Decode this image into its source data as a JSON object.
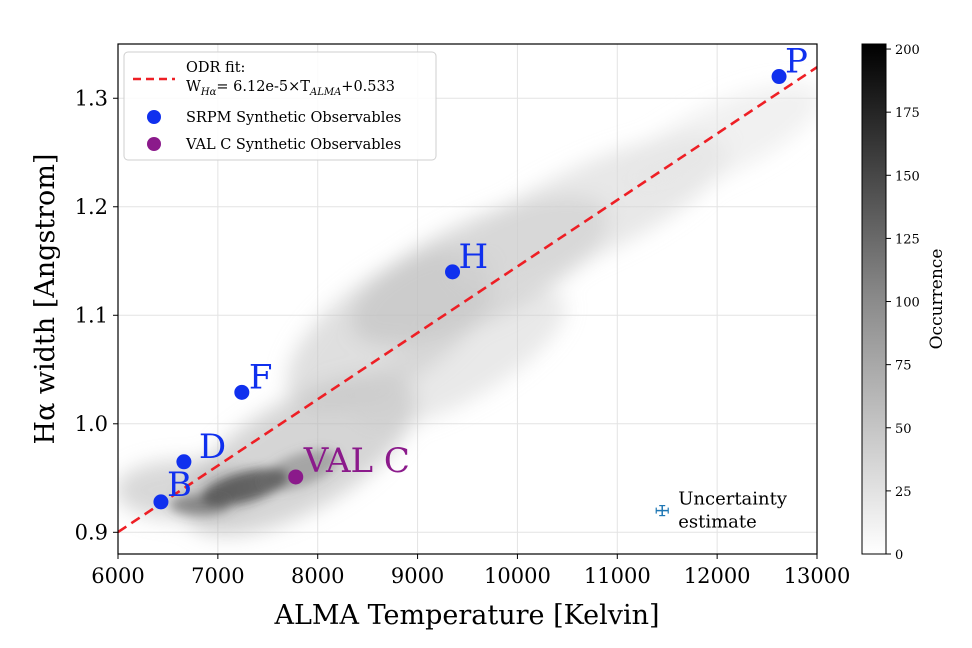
{
  "chart_data": {
    "type": "scatter",
    "xlabel": "ALMA Temperature [Kelvin]",
    "ylabel": "Hα width [Angstrom]",
    "xlim": [
      6000,
      13000
    ],
    "ylim": [
      0.88,
      1.35
    ],
    "x_ticks": [
      6000,
      7000,
      8000,
      9000,
      10000,
      11000,
      12000,
      13000
    ],
    "y_ticks": [
      0.9,
      1.0,
      1.1,
      1.2,
      1.3
    ],
    "grid": true,
    "fit_line": {
      "label_line1": "ODR fit:",
      "label_line2": "W_Hα= 6.12e-5×T_ALMA+0.533",
      "label_w": "W",
      "label_w_sub": "Hα",
      "label_eq_mid": "= 6.12e-5×T",
      "label_t_sub": "ALMA",
      "label_eq_end": "+0.533",
      "slope": 6.12e-05,
      "intercept": 0.533,
      "color": "#ee1f25",
      "style": "dashed"
    },
    "series": [
      {
        "name": "SRPM Synthetic Observables",
        "color": "#1030ee",
        "points": [
          {
            "label": "B",
            "x": 6430,
            "y": 0.928
          },
          {
            "label": "D",
            "x": 6660,
            "y": 0.965
          },
          {
            "label": "F",
            "x": 7240,
            "y": 1.029
          },
          {
            "label": "H",
            "x": 9350,
            "y": 1.14
          },
          {
            "label": "P",
            "x": 12620,
            "y": 1.32
          }
        ]
      },
      {
        "name": "VAL C Synthetic Observables",
        "color": "#8b1a8b",
        "points": [
          {
            "label": "VAL C",
            "x": 7780,
            "y": 0.951
          }
        ]
      }
    ],
    "uncertainty": {
      "label_line1": "Uncertainty",
      "label_line2": "estimate",
      "x": 11450,
      "y": 0.92,
      "color": "#1f77b4"
    },
    "density": {
      "colormap": "gray_r",
      "note": "2D histogram of occurrence counts"
    },
    "colorbar": {
      "label": "Occurrence",
      "min": 0,
      "max": 202,
      "ticks": [
        0,
        25,
        50,
        75,
        100,
        125,
        150,
        175,
        200
      ]
    },
    "legend_position": "top-left"
  }
}
